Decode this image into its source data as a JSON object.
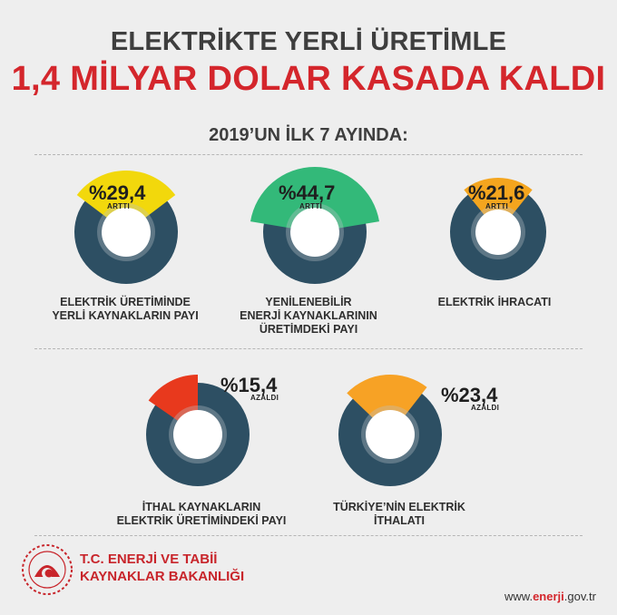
{
  "header": {
    "title_line1": "ELEKTRİKTE YERLİ ÜRETİMLE",
    "title_line2": "1,4 MİLYAR DOLAR KASADA KALDI",
    "subtitle": "2019’UN İLK 7 AYINDA:"
  },
  "chart_data": [
    {
      "type": "pie",
      "value_pct": 29.4,
      "direction": "ARTTI",
      "value_label": "%29,4",
      "label": "ELEKTRİK ÜRETİMİNDE\nYERLİ KAYNAKLARIN PAYI",
      "color": "#f2d80c"
    },
    {
      "type": "pie",
      "value_pct": 44.7,
      "direction": "ARTTI",
      "value_label": "%44,7",
      "label": "YENİLENEBİLİR\nENERJİ KAYNAKLARININ\nÜRETİMDEKİ PAYI",
      "color": "#33b979"
    },
    {
      "type": "pie",
      "value_pct": 21.6,
      "direction": "ARTTI",
      "value_label": "%21,6",
      "label": "ELEKTRİK İHRACATI",
      "color": "#f4a51e"
    },
    {
      "type": "pie",
      "value_pct": 15.4,
      "direction": "AZALDI",
      "value_label": "%15,4",
      "label": "İTHAL KAYNAKLARIN\nELEKTRİK ÜRETİMİNDEKİ PAYI",
      "color": "#e8391d"
    },
    {
      "type": "pie",
      "value_pct": 23.4,
      "direction": "AZALDI",
      "value_label": "%23,4",
      "label": "TÜRKİYE’NİN ELEKTRİK\nİTHALATI",
      "color": "#f7a225"
    }
  ],
  "footer": {
    "ministry": "T.C. ENERJİ VE TABİİ\nKAYNAKLAR BAKANLIĞI",
    "site_prefix": "www.",
    "site_brand": "enerji",
    "site_suffix": ".gov.tr"
  },
  "colors": {
    "ring": "#2d4f63",
    "accent_red": "#d4262c"
  }
}
